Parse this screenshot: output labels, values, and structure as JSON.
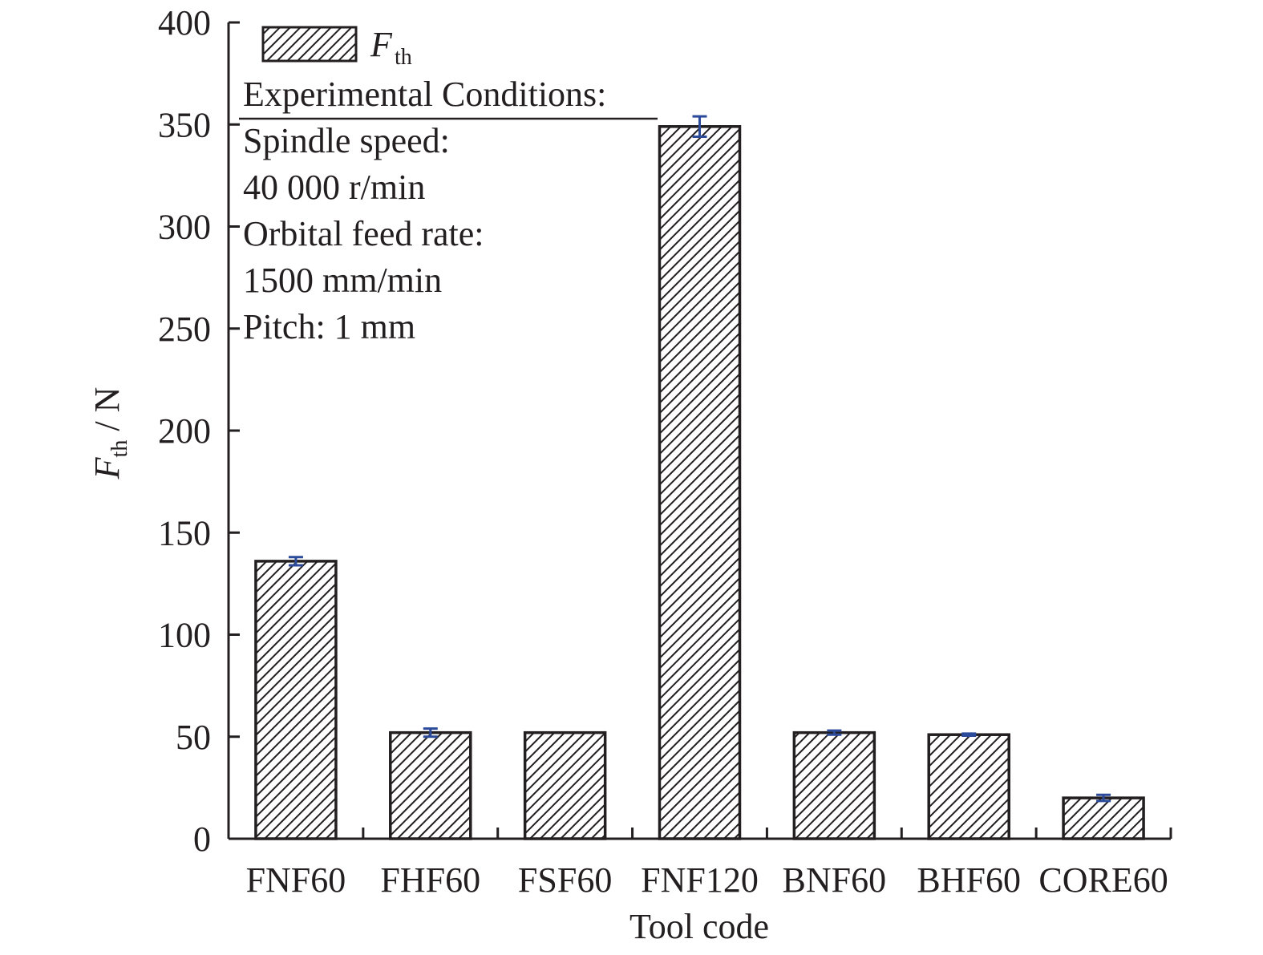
{
  "chart_data": {
    "type": "bar",
    "categories": [
      "FNF60",
      "FHF60",
      "FSF60",
      "FNF120",
      "BNF60",
      "BHF60",
      "CORE60"
    ],
    "series": [
      {
        "name": "F th",
        "name_main": "F",
        "name_sub": "th",
        "values": [
          136,
          52,
          52,
          349,
          52,
          51,
          20
        ],
        "error": [
          2,
          2,
          0,
          5,
          1,
          0.5,
          1.5
        ]
      }
    ],
    "xlabel": "Tool code",
    "ylabel_main": "F",
    "ylabel_sub": "th",
    "ylabel_rest": " / N",
    "ylim": [
      0,
      400
    ],
    "yticks": [
      0,
      50,
      100,
      150,
      200,
      250,
      300,
      350,
      400
    ],
    "legend_position": "top-left",
    "annotation": {
      "heading": "Experimental Conditions:",
      "lines": [
        "Spindle speed:",
        "40 000 r/min",
        "Orbital feed rate:",
        "1500 mm/min",
        "Pitch: 1 mm"
      ]
    },
    "grid": false,
    "bar_fill": "hatched",
    "error_bar_color": "#2b4a9a",
    "axis_color": "#231f20"
  }
}
